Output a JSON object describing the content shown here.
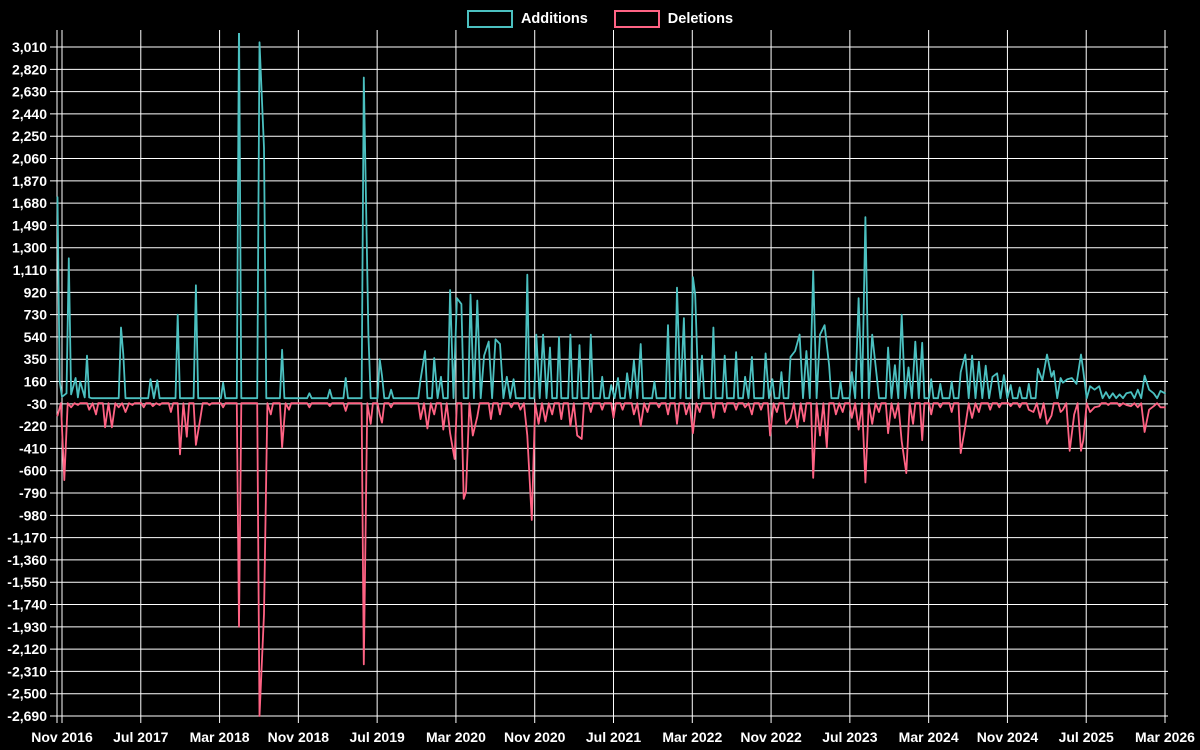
{
  "colors": {
    "background": "#000000",
    "grid": "#ffffff",
    "text": "#ffffff",
    "additions": "#4BC0C0",
    "deletions": "#FF6384"
  },
  "legend": {
    "additions_label": "Additions",
    "deletions_label": "Deletions"
  },
  "chart_data": {
    "type": "line",
    "title": "",
    "xlabel": "",
    "ylabel": "",
    "grid": true,
    "legend_position": "top-center",
    "x_unit": "weeks since Nov 2016",
    "x_range_weeks": [
      0,
      486
    ],
    "x_tick_labels": [
      "Nov 2016",
      "Jul 2017",
      "Mar 2018",
      "Nov 2018",
      "Jul 2019",
      "Mar 2020",
      "Nov 2020",
      "Jul 2021",
      "Mar 2022",
      "Nov 2022",
      "Jul 2023",
      "Mar 2024",
      "Nov 2024",
      "Jul 2025",
      "Mar 2026"
    ],
    "y_ticks": [
      3010,
      2820,
      2630,
      2440,
      2250,
      2060,
      1870,
      1680,
      1490,
      1300,
      1110,
      920,
      730,
      540,
      350,
      160,
      -30,
      -220,
      -410,
      -600,
      -790,
      -980,
      -1170,
      -1360,
      -1550,
      -1740,
      -1930,
      -2120,
      -2310,
      -2500,
      -2690
    ],
    "ylim": [
      -2690,
      3010
    ],
    "y_step": 190,
    "series": [
      {
        "name": "Additions",
        "color": "#4BC0C0",
        "baseline": 18,
        "points": [
          [
            -2,
            1730
          ],
          [
            -1,
            160
          ],
          [
            0,
            30
          ],
          [
            2,
            60
          ],
          [
            3,
            1210
          ],
          [
            4,
            50
          ],
          [
            6,
            190
          ],
          [
            7,
            25
          ],
          [
            8,
            160
          ],
          [
            10,
            25
          ],
          [
            11,
            380
          ],
          [
            12,
            25
          ],
          [
            26,
            620
          ],
          [
            27,
            390
          ],
          [
            39,
            180
          ],
          [
            42,
            170
          ],
          [
            51,
            730
          ],
          [
            59,
            980
          ],
          [
            71,
            150
          ],
          [
            78,
            3250
          ],
          [
            87,
            3050
          ],
          [
            89,
            2150
          ],
          [
            97,
            430
          ],
          [
            109,
            60
          ],
          [
            118,
            90
          ],
          [
            125,
            190
          ],
          [
            133,
            2750
          ],
          [
            135,
            560
          ],
          [
            140,
            350
          ],
          [
            141,
            210
          ],
          [
            145,
            90
          ],
          [
            158,
            180
          ],
          [
            160,
            420
          ],
          [
            164,
            360
          ],
          [
            167,
            200
          ],
          [
            171,
            940
          ],
          [
            174,
            870
          ],
          [
            176,
            820
          ],
          [
            180,
            900
          ],
          [
            183,
            850
          ],
          [
            186,
            380
          ],
          [
            188,
            500
          ],
          [
            191,
            520
          ],
          [
            193,
            480
          ],
          [
            196,
            200
          ],
          [
            199,
            180
          ],
          [
            205,
            1070
          ],
          [
            209,
            560
          ],
          [
            212,
            560
          ],
          [
            215,
            450
          ],
          [
            219,
            540
          ],
          [
            224,
            560
          ],
          [
            228,
            470
          ],
          [
            233,
            560
          ],
          [
            238,
            200
          ],
          [
            242,
            130
          ],
          [
            245,
            190
          ],
          [
            249,
            230
          ],
          [
            252,
            340
          ],
          [
            255,
            480
          ],
          [
            261,
            160
          ],
          [
            267,
            640
          ],
          [
            271,
            960
          ],
          [
            274,
            700
          ],
          [
            278,
            1050
          ],
          [
            279,
            900
          ],
          [
            282,
            380
          ],
          [
            287,
            620
          ],
          [
            292,
            380
          ],
          [
            297,
            410
          ],
          [
            301,
            200
          ],
          [
            304,
            370
          ],
          [
            310,
            400
          ],
          [
            313,
            180
          ],
          [
            317,
            240
          ],
          [
            321,
            370
          ],
          [
            323,
            420
          ],
          [
            325,
            560
          ],
          [
            328,
            420
          ],
          [
            331,
            1100
          ],
          [
            334,
            560
          ],
          [
            336,
            640
          ],
          [
            338,
            300
          ],
          [
            343,
            160
          ],
          [
            348,
            240
          ],
          [
            351,
            870
          ],
          [
            354,
            1560
          ],
          [
            357,
            560
          ],
          [
            359,
            200
          ],
          [
            364,
            450
          ],
          [
            367,
            300
          ],
          [
            370,
            730
          ],
          [
            373,
            280
          ],
          [
            376,
            500
          ],
          [
            379,
            490
          ],
          [
            383,
            180
          ],
          [
            387,
            140
          ],
          [
            392,
            160
          ],
          [
            396,
            240
          ],
          [
            398,
            390
          ],
          [
            401,
            380
          ],
          [
            404,
            330
          ],
          [
            407,
            295
          ],
          [
            410,
            200
          ],
          [
            412,
            230
          ],
          [
            415,
            215
          ],
          [
            418,
            130
          ],
          [
            422,
            110
          ],
          [
            426,
            140
          ],
          [
            430,
            270
          ],
          [
            432,
            170
          ],
          [
            434,
            390
          ],
          [
            436,
            200
          ],
          [
            437,
            250
          ],
          [
            440,
            190
          ],
          [
            441,
            150
          ],
          [
            443,
            180
          ],
          [
            445,
            190
          ],
          [
            447,
            140
          ],
          [
            449,
            390
          ],
          [
            450,
            250
          ],
          [
            453,
            120
          ],
          [
            455,
            90
          ],
          [
            457,
            120
          ],
          [
            460,
            70
          ],
          [
            463,
            60
          ],
          [
            466,
            50
          ],
          [
            469,
            60
          ],
          [
            471,
            70
          ],
          [
            474,
            90
          ],
          [
            477,
            210
          ],
          [
            479,
            90
          ],
          [
            481,
            60
          ],
          [
            484,
            80
          ],
          [
            486,
            60
          ]
        ]
      },
      {
        "name": "Deletions",
        "color": "#FF6384",
        "baseline": -25,
        "points": [
          [
            -2,
            -130
          ],
          [
            1,
            -680
          ],
          [
            4,
            -60
          ],
          [
            7,
            -40
          ],
          [
            12,
            -80
          ],
          [
            15,
            -120
          ],
          [
            19,
            -230
          ],
          [
            22,
            -230
          ],
          [
            25,
            -60
          ],
          [
            28,
            -100
          ],
          [
            31,
            -40
          ],
          [
            36,
            -60
          ],
          [
            40,
            -50
          ],
          [
            43,
            -40
          ],
          [
            48,
            -100
          ],
          [
            52,
            -460
          ],
          [
            55,
            -310
          ],
          [
            59,
            -380
          ],
          [
            61,
            -150
          ],
          [
            65,
            -40
          ],
          [
            71,
            -60
          ],
          [
            78,
            -1930
          ],
          [
            87,
            -2690
          ],
          [
            89,
            -1820
          ],
          [
            92,
            -120
          ],
          [
            97,
            -400
          ],
          [
            100,
            -80
          ],
          [
            109,
            -60
          ],
          [
            118,
            -50
          ],
          [
            125,
            -90
          ],
          [
            133,
            -2250
          ],
          [
            136,
            -200
          ],
          [
            140,
            -120
          ],
          [
            141,
            -190
          ],
          [
            145,
            -60
          ],
          [
            158,
            -160
          ],
          [
            161,
            -240
          ],
          [
            164,
            -120
          ],
          [
            168,
            -250
          ],
          [
            171,
            -280
          ],
          [
            173,
            -500
          ],
          [
            177,
            -840
          ],
          [
            178,
            -780
          ],
          [
            181,
            -300
          ],
          [
            183,
            -140
          ],
          [
            189,
            -160
          ],
          [
            193,
            -120
          ],
          [
            198,
            -60
          ],
          [
            202,
            -80
          ],
          [
            205,
            -300
          ],
          [
            207,
            -1020
          ],
          [
            210,
            -200
          ],
          [
            213,
            -180
          ],
          [
            216,
            -120
          ],
          [
            220,
            -160
          ],
          [
            224,
            -220
          ],
          [
            227,
            -300
          ],
          [
            229,
            -330
          ],
          [
            233,
            -100
          ],
          [
            238,
            -80
          ],
          [
            243,
            -150
          ],
          [
            247,
            -80
          ],
          [
            252,
            -120
          ],
          [
            255,
            -220
          ],
          [
            258,
            -100
          ],
          [
            263,
            -60
          ],
          [
            267,
            -120
          ],
          [
            271,
            -200
          ],
          [
            275,
            -120
          ],
          [
            278,
            -280
          ],
          [
            281,
            -100
          ],
          [
            287,
            -150
          ],
          [
            292,
            -100
          ],
          [
            297,
            -80
          ],
          [
            301,
            -60
          ],
          [
            304,
            -120
          ],
          [
            308,
            -80
          ],
          [
            312,
            -300
          ],
          [
            315,
            -100
          ],
          [
            319,
            -200
          ],
          [
            321,
            -150
          ],
          [
            324,
            -230
          ],
          [
            327,
            -180
          ],
          [
            331,
            -660
          ],
          [
            334,
            -300
          ],
          [
            337,
            -400
          ],
          [
            341,
            -120
          ],
          [
            344,
            -100
          ],
          [
            348,
            -150
          ],
          [
            351,
            -250
          ],
          [
            354,
            -700
          ],
          [
            357,
            -200
          ],
          [
            360,
            -100
          ],
          [
            364,
            -280
          ],
          [
            367,
            -150
          ],
          [
            370,
            -350
          ],
          [
            372,
            -620
          ],
          [
            375,
            -200
          ],
          [
            379,
            -340
          ],
          [
            383,
            -120
          ],
          [
            387,
            -60
          ],
          [
            392,
            -100
          ],
          [
            396,
            -450
          ],
          [
            398,
            -220
          ],
          [
            401,
            -150
          ],
          [
            404,
            -100
          ],
          [
            409,
            -80
          ],
          [
            413,
            -60
          ],
          [
            418,
            -50
          ],
          [
            422,
            -60
          ],
          [
            426,
            -80
          ],
          [
            428,
            -100
          ],
          [
            431,
            -150
          ],
          [
            434,
            -200
          ],
          [
            436,
            -130
          ],
          [
            440,
            -100
          ],
          [
            441,
            -80
          ],
          [
            444,
            -430
          ],
          [
            446,
            -120
          ],
          [
            449,
            -430
          ],
          [
            450,
            -340
          ],
          [
            453,
            -100
          ],
          [
            455,
            -60
          ],
          [
            457,
            -50
          ],
          [
            461,
            -40
          ],
          [
            466,
            -50
          ],
          [
            469,
            -40
          ],
          [
            471,
            -50
          ],
          [
            474,
            -60
          ],
          [
            477,
            -270
          ],
          [
            479,
            -80
          ],
          [
            481,
            -50
          ],
          [
            484,
            -60
          ],
          [
            486,
            -60
          ]
        ]
      }
    ]
  }
}
